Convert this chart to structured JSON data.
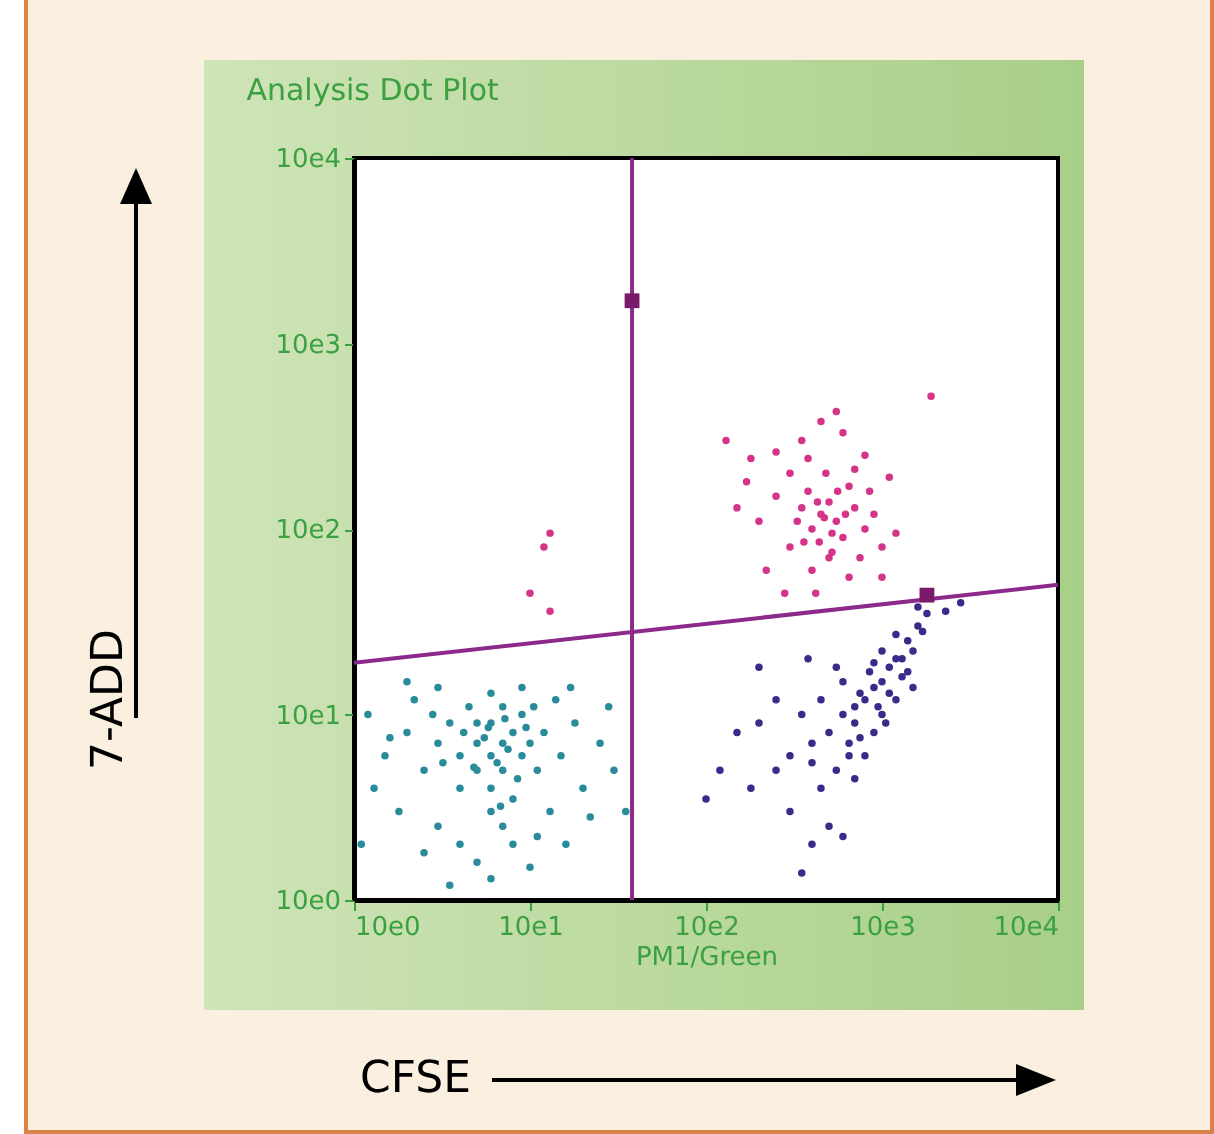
{
  "chart_data": {
    "type": "scatter",
    "title": "Analysis Dot Plot",
    "xlabel": "PM1/Green",
    "ylabel": "7-ADD",
    "annotations": [
      "CFSE"
    ],
    "log": "xy",
    "grid": false,
    "marker": "circle",
    "xlim": [
      10,
      100000
    ],
    "ylim": [
      10,
      100000
    ],
    "xticks": [
      {
        "value": 10,
        "label": "10e0"
      },
      {
        "value": 100,
        "label": "10e1"
      },
      {
        "value": 1000,
        "label": "10e2"
      },
      {
        "value": 10000,
        "label": "10e3"
      },
      {
        "value": 100000,
        "label": "10e4"
      }
    ],
    "yticks": [
      {
        "value": 10,
        "label": "10e0"
      },
      {
        "value": 100,
        "label": "10e1"
      },
      {
        "value": 1000,
        "label": "10e2"
      },
      {
        "value": 10000,
        "label": "10e3"
      },
      {
        "value": 100000,
        "label": "10e4"
      }
    ],
    "ref_lines": [
      {
        "axis": "x",
        "value": 380,
        "color": "#8b2a8b"
      }
    ],
    "series": [
      {
        "color": "#2a8c9a",
        "x": [
          60,
          50,
          70,
          80,
          40,
          60,
          90,
          50,
          70,
          30,
          60,
          100,
          40,
          80,
          50,
          70,
          60,
          90,
          110,
          120,
          35,
          25,
          20,
          15,
          12,
          18,
          22,
          30,
          40,
          50,
          60,
          80,
          100,
          130,
          150,
          180,
          200,
          250,
          300,
          140,
          90,
          60,
          45,
          30,
          20,
          13,
          11,
          25,
          35,
          70,
          110,
          160,
          220,
          350,
          280,
          170,
          55,
          65,
          75,
          48,
          85,
          58,
          72,
          42,
          95,
          32,
          68,
          105,
          28,
          16
        ],
        "values": [
          60,
          70,
          50,
          80,
          60,
          40,
          60,
          90,
          110,
          70,
          30,
          70,
          40,
          35,
          50,
          70,
          90,
          100,
          50,
          80,
          90,
          50,
          80,
          60,
          100,
          30,
          120,
          25,
          20,
          16,
          13,
          20,
          15,
          30,
          60,
          90,
          40,
          70,
          50,
          120,
          140,
          130,
          110,
          140,
          150,
          40,
          20,
          18,
          12,
          25,
          22,
          20,
          28,
          30,
          110,
          140,
          75,
          55,
          65,
          52,
          45,
          85,
          95,
          80,
          85,
          55,
          32,
          110,
          100,
          75
        ]
      },
      {
        "color": "#3a2a8a",
        "x": [
          8000,
          10000,
          6000,
          12000,
          9000,
          7000,
          5000,
          11000,
          14000,
          16000,
          18000,
          15000,
          13000,
          9500,
          7500,
          6500,
          4000,
          3500,
          3000,
          2500,
          2000,
          1500,
          1200,
          1000,
          1800,
          3000,
          4500,
          5500,
          7000,
          5000,
          4000,
          6000,
          3500,
          8000,
          9000,
          10000,
          12000,
          15000,
          8500,
          6000,
          4500,
          2500,
          2000,
          3800,
          5500,
          17000,
          11000,
          13000,
          10000,
          7000,
          9000,
          12000,
          16000,
          23000,
          28000,
          4000,
          6500,
          7500,
          10500,
          14000
        ],
        "values": [
          120,
          150,
          100,
          200,
          140,
          90,
          80,
          180,
          250,
          300,
          350,
          220,
          160,
          110,
          130,
          70,
          70,
          100,
          60,
          50,
          90,
          80,
          50,
          35,
          40,
          30,
          40,
          50,
          45,
          25,
          20,
          22,
          14,
          60,
          80,
          100,
          120,
          140,
          170,
          150,
          120,
          120,
          180,
          200,
          180,
          280,
          130,
          200,
          220,
          110,
          190,
          270,
          380,
          360,
          400,
          55,
          60,
          75,
          90,
          170
        ]
      },
      {
        "color": "#d6348a",
        "x": [
          4500,
          4000,
          5000,
          5500,
          3500,
          6000,
          3800,
          4800,
          3000,
          2500,
          2000,
          6500,
          7000,
          8000,
          9000,
          10000,
          7500,
          5000,
          4000,
          3000,
          2200,
          1800,
          2500,
          3500,
          4500,
          5500,
          6000,
          8000,
          11000,
          12000,
          10000,
          6500,
          4200,
          2800,
          1500,
          1700,
          4300,
          5200,
          4700,
          5600,
          3300,
          6200,
          19000,
          1300,
          3800,
          7000,
          5200,
          8500,
          3600,
          4400,
          130,
          120,
          100,
          130
        ],
        "values": [
          1200,
          1000,
          1400,
          1100,
          1300,
          900,
          1600,
          2000,
          2000,
          1500,
          1100,
          1700,
          1300,
          1000,
          1200,
          800,
          700,
          700,
          600,
          800,
          600,
          2400,
          2600,
          3000,
          3800,
          4300,
          3300,
          2500,
          1900,
          950,
          550,
          550,
          450,
          450,
          1300,
          1800,
          1400,
          950,
          1150,
          1600,
          1100,
          1200,
          5200,
          3000,
          2400,
          2100,
          750,
          1600,
          850,
          850,
          950,
          800,
          450,
          360
        ]
      },
      {
        "type": "line",
        "marker": "none",
        "color": "#8b2a8b",
        "x": [
          10,
          100000
        ],
        "values": [
          190,
          500
        ]
      },
      {
        "type": "scatter",
        "marker": "square",
        "color": "#7a1a6a",
        "x": [
          380,
          18000
        ],
        "values": [
          17000,
          440
        ]
      }
    ]
  }
}
